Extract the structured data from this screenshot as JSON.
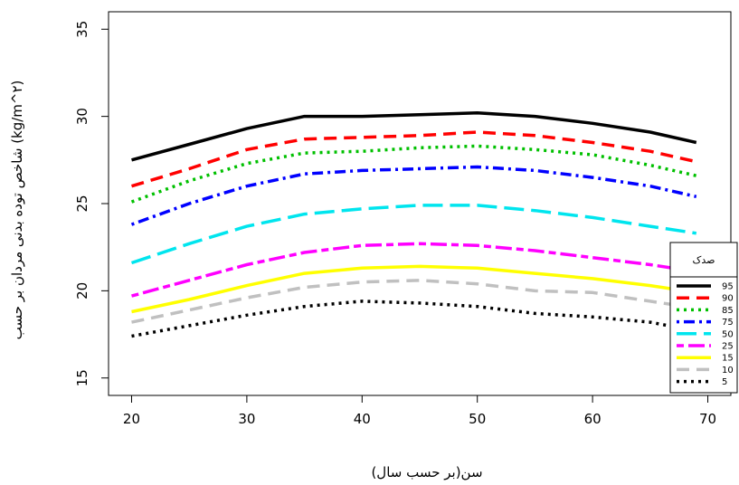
{
  "chart_data": {
    "type": "line",
    "title": "",
    "xlabel": "سن(بر حسب سال)",
    "ylabel": "شاخص توده بدنی مردان بر حسب (kg/m^۲)",
    "xlim": [
      18,
      72
    ],
    "ylim": [
      14,
      36
    ],
    "x_ticks": [
      20,
      30,
      40,
      50,
      60,
      70
    ],
    "y_ticks": [
      15,
      20,
      25,
      30,
      35
    ],
    "grid": false,
    "legend": {
      "title": "صدک",
      "placement": "right"
    },
    "series": [
      {
        "name": "95",
        "color": "#000000",
        "dash": "solid",
        "x": [
          20,
          25,
          30,
          35,
          40,
          45,
          50,
          55,
          60,
          65,
          69
        ],
        "y": [
          27.5,
          28.4,
          29.3,
          30.0,
          30.0,
          30.1,
          30.2,
          30.0,
          29.6,
          29.1,
          28.5
        ]
      },
      {
        "name": "90",
        "color": "#ff0000",
        "dash": "dashed",
        "x": [
          20,
          25,
          30,
          35,
          40,
          45,
          50,
          55,
          60,
          65,
          69
        ],
        "y": [
          26.0,
          27.0,
          28.1,
          28.7,
          28.8,
          28.9,
          29.1,
          28.9,
          28.5,
          28.0,
          27.4
        ]
      },
      {
        "name": "85",
        "color": "#00c000",
        "dash": "dotted",
        "x": [
          20,
          25,
          30,
          35,
          40,
          45,
          50,
          55,
          60,
          65,
          69
        ],
        "y": [
          25.1,
          26.3,
          27.3,
          27.9,
          28.0,
          28.2,
          28.3,
          28.1,
          27.8,
          27.2,
          26.6
        ]
      },
      {
        "name": "75",
        "color": "#0000ff",
        "dash": "dotdash",
        "x": [
          20,
          25,
          30,
          35,
          40,
          45,
          50,
          55,
          60,
          65,
          69
        ],
        "y": [
          23.8,
          25.0,
          26.0,
          26.7,
          26.9,
          27.0,
          27.1,
          26.9,
          26.5,
          26.0,
          25.4
        ]
      },
      {
        "name": "50",
        "color": "#00e5ee",
        "dash": "longdash",
        "x": [
          20,
          25,
          30,
          35,
          40,
          45,
          50,
          55,
          60,
          65,
          69
        ],
        "y": [
          21.6,
          22.7,
          23.7,
          24.4,
          24.7,
          24.9,
          24.9,
          24.6,
          24.2,
          23.7,
          23.3
        ]
      },
      {
        "name": "25",
        "color": "#ff00ff",
        "dash": "twodash",
        "x": [
          20,
          25,
          30,
          35,
          40,
          45,
          50,
          55,
          60,
          65,
          69
        ],
        "y": [
          19.7,
          20.6,
          21.5,
          22.2,
          22.6,
          22.7,
          22.6,
          22.3,
          21.9,
          21.5,
          21.1
        ]
      },
      {
        "name": "15",
        "color": "#ffff00",
        "dash": "solid",
        "x": [
          20,
          25,
          30,
          35,
          40,
          45,
          50,
          55,
          60,
          65,
          69
        ],
        "y": [
          18.8,
          19.5,
          20.3,
          21.0,
          21.3,
          21.4,
          21.3,
          21.0,
          20.7,
          20.3,
          19.9
        ]
      },
      {
        "name": "10",
        "color": "#c0c0c0",
        "dash": "dashed",
        "x": [
          20,
          25,
          30,
          35,
          40,
          45,
          50,
          55,
          60,
          65,
          69
        ],
        "y": [
          18.2,
          18.9,
          19.6,
          20.2,
          20.5,
          20.6,
          20.4,
          20.0,
          19.9,
          19.4,
          19.0
        ]
      },
      {
        "name": "5",
        "color": "#000000",
        "dash": "dotted",
        "x": [
          20,
          25,
          30,
          35,
          40,
          45,
          50,
          55,
          60,
          65,
          69
        ],
        "y": [
          17.4,
          18.0,
          18.6,
          19.1,
          19.4,
          19.3,
          19.1,
          18.7,
          18.5,
          18.2,
          17.7
        ]
      }
    ]
  }
}
